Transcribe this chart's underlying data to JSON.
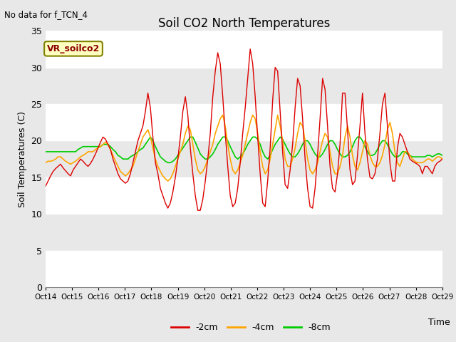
{
  "title": "Soil CO2 North Temperatures",
  "subtitle": "No data for f_TCN_4",
  "ylabel": "Soil Temperatures (C)",
  "xlabel": "Time",
  "legend_label": "VR_soilco2",
  "xlim": [
    0,
    15
  ],
  "ylim": [
    0,
    35
  ],
  "yticks": [
    0,
    5,
    10,
    15,
    20,
    25,
    30,
    35
  ],
  "xtick_labels": [
    "Oct 14",
    "Oct 15",
    "Oct 16",
    "Oct 17",
    "Oct 18",
    "Oct 19",
    "Oct 20",
    "Oct 21",
    "Oct 22",
    "Oct 23",
    "Oct 24",
    "Oct 25",
    "Oct 26",
    "Oct 27",
    "Oct 28",
    "Oct 29"
  ],
  "bg_color": "#e8e8e8",
  "plot_bg_color": "#e8e8e8",
  "grid_color": "white",
  "line_2cm_color": "#dd0000",
  "line_4cm_color": "#ffa500",
  "line_8cm_color": "#00cc00",
  "series_2cm": [
    13.8,
    14.5,
    15.2,
    15.8,
    16.2,
    16.5,
    16.8,
    16.3,
    15.9,
    15.5,
    15.2,
    16.0,
    16.5,
    17.0,
    17.5,
    17.2,
    16.8,
    16.5,
    16.9,
    17.5,
    18.2,
    19.0,
    19.8,
    20.5,
    20.2,
    19.5,
    18.8,
    17.5,
    16.5,
    15.5,
    14.8,
    14.5,
    14.2,
    14.5,
    15.5,
    17.0,
    18.5,
    20.0,
    21.0,
    22.0,
    24.0,
    26.5,
    24.5,
    20.5,
    17.0,
    15.5,
    13.5,
    12.5,
    11.5,
    10.8,
    11.5,
    13.0,
    15.0,
    17.5,
    20.5,
    24.0,
    26.0,
    23.5,
    19.0,
    15.5,
    12.5,
    10.5,
    10.5,
    12.0,
    14.5,
    17.5,
    21.0,
    26.0,
    29.5,
    32.0,
    30.5,
    26.0,
    21.0,
    16.5,
    12.5,
    11.0,
    11.5,
    13.5,
    17.0,
    21.0,
    24.5,
    28.5,
    32.5,
    30.5,
    26.0,
    20.5,
    15.5,
    11.5,
    11.0,
    14.5,
    19.0,
    25.5,
    30.0,
    29.5,
    24.0,
    18.5,
    14.0,
    13.5,
    16.0,
    19.5,
    24.5,
    28.5,
    27.5,
    23.0,
    17.5,
    13.5,
    11.0,
    10.8,
    13.5,
    18.0,
    23.0,
    28.5,
    27.0,
    22.0,
    16.5,
    13.5,
    13.0,
    15.5,
    19.5,
    26.5,
    26.5,
    21.5,
    16.0,
    14.0,
    14.5,
    18.0,
    22.0,
    26.5,
    21.0,
    17.5,
    15.0,
    14.8,
    15.5,
    17.5,
    21.0,
    25.0,
    26.5,
    22.0,
    17.0,
    14.5,
    14.5,
    19.0,
    21.0,
    20.5,
    19.5,
    18.5,
    17.5,
    17.2,
    17.0,
    16.8,
    16.5,
    15.5,
    16.5,
    16.5,
    16.0,
    15.5,
    16.5,
    17.0,
    17.2,
    17.5
  ],
  "series_4cm": [
    17.0,
    17.2,
    17.2,
    17.3,
    17.5,
    17.8,
    17.8,
    17.5,
    17.2,
    17.0,
    16.8,
    17.0,
    17.2,
    17.5,
    17.8,
    18.0,
    18.2,
    18.5,
    18.5,
    18.5,
    18.8,
    19.0,
    19.2,
    19.5,
    19.8,
    19.5,
    18.8,
    18.0,
    17.2,
    16.5,
    15.8,
    15.5,
    15.2,
    15.5,
    16.0,
    16.5,
    17.5,
    18.5,
    19.5,
    20.5,
    21.0,
    21.5,
    20.5,
    19.0,
    17.5,
    16.5,
    15.8,
    15.2,
    14.8,
    14.5,
    14.8,
    15.5,
    16.5,
    17.5,
    18.5,
    19.5,
    21.0,
    22.0,
    21.5,
    19.5,
    17.5,
    16.0,
    15.5,
    15.8,
    16.5,
    17.5,
    18.5,
    19.5,
    21.0,
    22.0,
    23.0,
    23.5,
    22.0,
    19.5,
    17.5,
    16.0,
    15.5,
    16.0,
    17.0,
    18.0,
    19.5,
    21.0,
    22.5,
    23.5,
    23.0,
    21.0,
    18.5,
    16.5,
    15.5,
    16.0,
    17.5,
    19.5,
    21.5,
    23.5,
    22.0,
    20.0,
    17.5,
    16.5,
    16.5,
    17.5,
    19.0,
    21.0,
    22.5,
    22.0,
    20.0,
    17.5,
    16.0,
    15.5,
    16.0,
    17.0,
    18.5,
    20.0,
    21.0,
    20.5,
    18.5,
    16.5,
    15.5,
    15.5,
    16.5,
    18.0,
    20.5,
    22.0,
    20.5,
    18.0,
    16.5,
    16.0,
    17.0,
    18.5,
    20.0,
    19.5,
    18.0,
    17.0,
    16.5,
    16.5,
    17.0,
    18.0,
    19.5,
    21.5,
    22.5,
    21.0,
    18.5,
    17.0,
    16.5,
    17.5,
    18.5,
    18.5,
    18.0,
    17.5,
    17.2,
    17.0,
    17.0,
    17.0,
    17.2,
    17.5,
    17.5,
    17.2,
    17.5,
    17.8,
    17.8,
    17.5
  ],
  "series_8cm": [
    18.5,
    18.5,
    18.5,
    18.5,
    18.5,
    18.5,
    18.5,
    18.5,
    18.5,
    18.5,
    18.5,
    18.5,
    18.5,
    18.8,
    19.0,
    19.2,
    19.2,
    19.2,
    19.2,
    19.2,
    19.2,
    19.2,
    19.2,
    19.5,
    19.5,
    19.5,
    19.2,
    18.8,
    18.5,
    18.0,
    17.8,
    17.5,
    17.5,
    17.5,
    17.8,
    18.0,
    18.2,
    18.5,
    18.8,
    19.0,
    19.5,
    20.0,
    20.5,
    20.0,
    19.2,
    18.5,
    17.8,
    17.5,
    17.2,
    17.0,
    17.0,
    17.2,
    17.5,
    18.0,
    18.5,
    19.0,
    19.5,
    20.0,
    20.5,
    20.5,
    19.8,
    19.0,
    18.2,
    17.8,
    17.5,
    17.5,
    17.8,
    18.2,
    18.8,
    19.5,
    20.0,
    20.5,
    20.5,
    20.0,
    19.2,
    18.5,
    17.8,
    17.5,
    17.8,
    18.2,
    18.8,
    19.5,
    20.0,
    20.5,
    20.5,
    20.2,
    19.5,
    18.5,
    17.8,
    17.5,
    18.0,
    18.8,
    19.5,
    20.0,
    20.5,
    20.2,
    19.5,
    18.8,
    18.2,
    17.8,
    17.8,
    18.2,
    18.8,
    19.5,
    20.0,
    20.0,
    19.5,
    18.8,
    18.2,
    17.8,
    17.8,
    18.2,
    18.8,
    19.5,
    20.0,
    20.0,
    19.5,
    18.8,
    18.2,
    17.8,
    17.8,
    18.0,
    18.5,
    19.2,
    20.0,
    20.5,
    20.5,
    20.0,
    19.2,
    18.5,
    18.0,
    18.0,
    18.2,
    18.8,
    19.5,
    20.0,
    20.0,
    19.5,
    18.8,
    18.2,
    17.8,
    17.8,
    18.0,
    18.5,
    18.5,
    18.2,
    18.0,
    17.8,
    17.8,
    17.8,
    17.8,
    17.8,
    17.8,
    18.0,
    18.0,
    17.8,
    18.0,
    18.2,
    18.2,
    18.0
  ]
}
